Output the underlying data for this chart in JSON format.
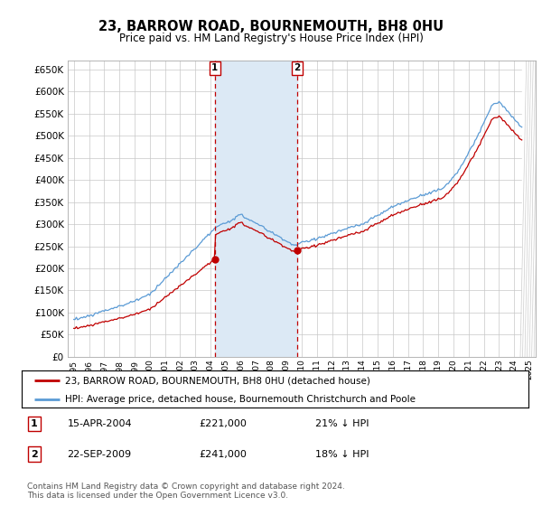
{
  "title": "23, BARROW ROAD, BOURNEMOUTH, BH8 0HU",
  "subtitle": "Price paid vs. HM Land Registry's House Price Index (HPI)",
  "legend_line1": "23, BARROW ROAD, BOURNEMOUTH, BH8 0HU (detached house)",
  "legend_line2": "HPI: Average price, detached house, Bournemouth Christchurch and Poole",
  "footnote": "Contains HM Land Registry data © Crown copyright and database right 2024.\nThis data is licensed under the Open Government Licence v3.0.",
  "transaction1_date": "15-APR-2004",
  "transaction1_price": "£221,000",
  "transaction1_hpi": "21% ↓ HPI",
  "transaction1_year": 2004.29,
  "transaction1_value": 221000,
  "transaction2_date": "22-SEP-2009",
  "transaction2_price": "£241,000",
  "transaction2_hpi": "18% ↓ HPI",
  "transaction2_year": 2009.72,
  "transaction2_value": 241000,
  "hpi_color": "#5b9bd5",
  "price_color": "#c00000",
  "vline_color": "#c00000",
  "shade_color": "#dce9f5",
  "grid_color": "#c8c8c8",
  "background_color": "#ffffff",
  "plot_bg_color": "#ffffff",
  "ylim_min": 0,
  "ylim_max": 670000,
  "ytick_values": [
    0,
    50000,
    100000,
    150000,
    200000,
    250000,
    300000,
    350000,
    400000,
    450000,
    500000,
    550000,
    600000,
    650000
  ],
  "xlim_min": 1994.6,
  "xlim_max": 2025.4
}
